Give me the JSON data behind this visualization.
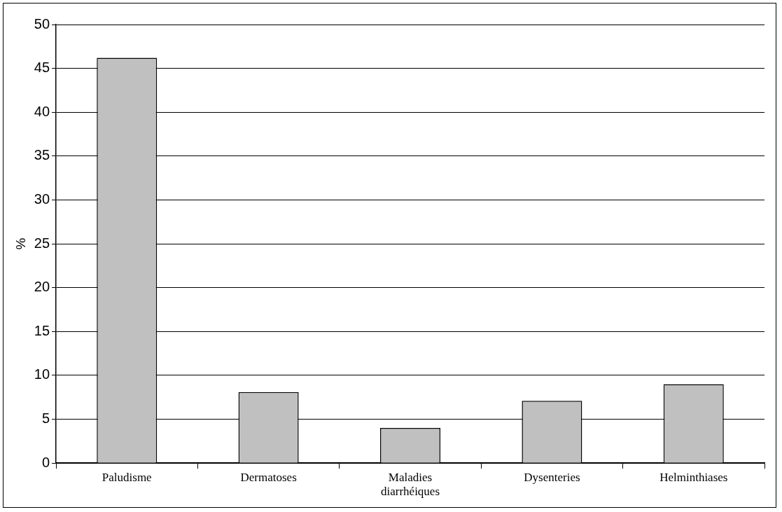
{
  "chart_data": {
    "type": "bar",
    "ylabel": "%",
    "categories": [
      "Paludisme",
      "Dermatoses",
      "Maladies diarrhéiques",
      "Dysenteries",
      "Helminthiases"
    ],
    "values": [
      46.2,
      8.1,
      4,
      7.1,
      9
    ],
    "color": "#c0c0c0",
    "ylim": [
      0,
      50
    ],
    "yticks": [
      0,
      5,
      10,
      15,
      20,
      25,
      30,
      35,
      40,
      45,
      50
    ],
    "grid": "y",
    "legend": false
  }
}
